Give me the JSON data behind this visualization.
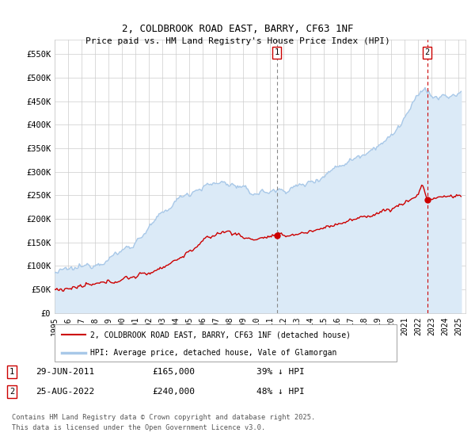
{
  "title": "2, COLDBROOK ROAD EAST, BARRY, CF63 1NF",
  "subtitle": "Price paid vs. HM Land Registry's House Price Index (HPI)",
  "xlim_start": 1995.0,
  "xlim_end": 2025.5,
  "ylim_min": 0,
  "ylim_max": 580000,
  "yticks": [
    0,
    50000,
    100000,
    150000,
    200000,
    250000,
    300000,
    350000,
    400000,
    450000,
    500000,
    550000
  ],
  "ytick_labels": [
    "£0",
    "£50K",
    "£100K",
    "£150K",
    "£200K",
    "£250K",
    "£300K",
    "£350K",
    "£400K",
    "£450K",
    "£500K",
    "£550K"
  ],
  "hpi_line_color": "#a8c8e8",
  "hpi_fill_color": "#dbeaf7",
  "price_color": "#cc0000",
  "vline1_color": "#888888",
  "vline2_color": "#cc0000",
  "vline1_x": 2011.5,
  "vline2_x": 2022.65,
  "marker1_x": 2011.5,
  "marker1_y": 165000,
  "marker2_x": 2022.65,
  "marker2_y": 240000,
  "legend_line1": "2, COLDBROOK ROAD EAST, BARRY, CF63 1NF (detached house)",
  "legend_line2": "HPI: Average price, detached house, Vale of Glamorgan",
  "date1": "29-JUN-2011",
  "price1": "£165,000",
  "pct1": "39% ↓ HPI",
  "date2": "25-AUG-2022",
  "price2": "£240,000",
  "pct2": "48% ↓ HPI",
  "copyright_text": "Contains HM Land Registry data © Crown copyright and database right 2025.\nThis data is licensed under the Open Government Licence v3.0.",
  "background_color": "#ffffff",
  "grid_color": "#cccccc",
  "ann_box_color": "#cc0000"
}
